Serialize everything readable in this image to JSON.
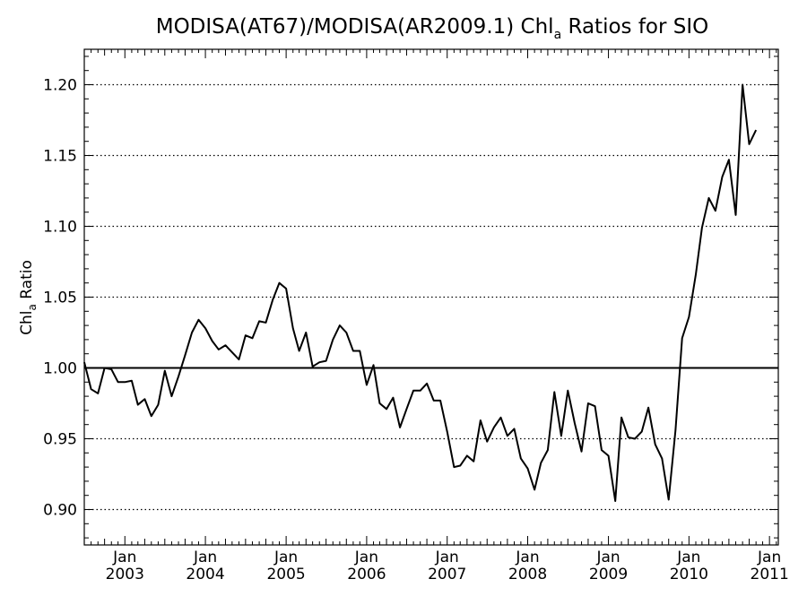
{
  "chart_data": {
    "type": "line",
    "title_main": "MODISA(AT67)/MODISA(AR2009.1)  Chl",
    "title_sub": "a",
    "title_tail": " Ratios for SIO",
    "ylabel_main": "Chl",
    "ylabel_sub": "a",
    "ylabel_tail": " Ratio",
    "xlim": [
      "2002-07-01",
      "2011-02-10"
    ],
    "ylim": [
      0.875,
      1.225
    ],
    "yticks": [
      {
        "value": 0.9,
        "label": "0.90"
      },
      {
        "value": 0.95,
        "label": "0.95"
      },
      {
        "value": 1.0,
        "label": "1.00"
      },
      {
        "value": 1.05,
        "label": "1.05"
      },
      {
        "value": 1.1,
        "label": "1.10"
      },
      {
        "value": 1.15,
        "label": "1.15"
      },
      {
        "value": 1.2,
        "label": "1.20"
      }
    ],
    "xticks": [
      {
        "date": "2003-01-01",
        "month": "Jan",
        "year": "2003"
      },
      {
        "date": "2004-01-01",
        "month": "Jan",
        "year": "2004"
      },
      {
        "date": "2005-01-01",
        "month": "Jan",
        "year": "2005"
      },
      {
        "date": "2006-01-01",
        "month": "Jan",
        "year": "2006"
      },
      {
        "date": "2007-01-01",
        "month": "Jan",
        "year": "2007"
      },
      {
        "date": "2008-01-01",
        "month": "Jan",
        "year": "2008"
      },
      {
        "date": "2009-01-01",
        "month": "Jan",
        "year": "2009"
      },
      {
        "date": "2010-01-01",
        "month": "Jan",
        "year": "2010"
      },
      {
        "date": "2011-01-01",
        "month": "Jan",
        "year": "2011"
      }
    ],
    "grid": "horizontal dotted",
    "reference_line": 1.0,
    "series": [
      {
        "points": [
          [
            "2002-07-01",
            1.004
          ],
          [
            "2002-08-01",
            0.985
          ],
          [
            "2002-09-01",
            0.982
          ],
          [
            "2002-10-01",
            1.0
          ],
          [
            "2002-11-01",
            0.999
          ],
          [
            "2002-12-01",
            0.99
          ],
          [
            "2003-01-01",
            0.99
          ],
          [
            "2003-02-01",
            0.991
          ],
          [
            "2003-03-01",
            0.974
          ],
          [
            "2003-04-01",
            0.978
          ],
          [
            "2003-05-01",
            0.966
          ],
          [
            "2003-06-01",
            0.974
          ],
          [
            "2003-07-01",
            0.998
          ],
          [
            "2003-08-01",
            0.98
          ],
          [
            "2003-09-01",
            0.994
          ],
          [
            "2003-10-01",
            1.009
          ],
          [
            "2003-11-01",
            1.025
          ],
          [
            "2003-12-01",
            1.034
          ],
          [
            "2004-01-01",
            1.028
          ],
          [
            "2004-02-01",
            1.019
          ],
          [
            "2004-03-01",
            1.013
          ],
          [
            "2004-04-01",
            1.016
          ],
          [
            "2004-05-01",
            1.011
          ],
          [
            "2004-06-01",
            1.006
          ],
          [
            "2004-07-01",
            1.023
          ],
          [
            "2004-08-01",
            1.021
          ],
          [
            "2004-09-01",
            1.033
          ],
          [
            "2004-10-01",
            1.032
          ],
          [
            "2004-11-01",
            1.048
          ],
          [
            "2004-12-01",
            1.06
          ],
          [
            "2005-01-01",
            1.056
          ],
          [
            "2005-02-01",
            1.028
          ],
          [
            "2005-03-01",
            1.012
          ],
          [
            "2005-04-01",
            1.025
          ],
          [
            "2005-05-01",
            1.001
          ],
          [
            "2005-06-01",
            1.004
          ],
          [
            "2005-07-01",
            1.005
          ],
          [
            "2005-08-01",
            1.02
          ],
          [
            "2005-09-01",
            1.03
          ],
          [
            "2005-10-01",
            1.025
          ],
          [
            "2005-11-01",
            1.012
          ],
          [
            "2005-12-01",
            1.012
          ],
          [
            "2006-01-01",
            0.988
          ],
          [
            "2006-02-01",
            1.002
          ],
          [
            "2006-03-01",
            0.975
          ],
          [
            "2006-04-01",
            0.971
          ],
          [
            "2006-05-01",
            0.979
          ],
          [
            "2006-06-01",
            0.958
          ],
          [
            "2006-07-01",
            0.971
          ],
          [
            "2006-08-01",
            0.984
          ],
          [
            "2006-09-01",
            0.984
          ],
          [
            "2006-10-01",
            0.989
          ],
          [
            "2006-11-01",
            0.977
          ],
          [
            "2006-12-01",
            0.977
          ],
          [
            "2007-01-01",
            0.955
          ],
          [
            "2007-02-01",
            0.93
          ],
          [
            "2007-03-01",
            0.931
          ],
          [
            "2007-04-01",
            0.938
          ],
          [
            "2007-05-01",
            0.934
          ],
          [
            "2007-06-01",
            0.963
          ],
          [
            "2007-07-01",
            0.948
          ],
          [
            "2007-08-01",
            0.958
          ],
          [
            "2007-09-01",
            0.965
          ],
          [
            "2007-10-01",
            0.952
          ],
          [
            "2007-11-01",
            0.957
          ],
          [
            "2007-12-01",
            0.936
          ],
          [
            "2008-01-01",
            0.929
          ],
          [
            "2008-02-01",
            0.914
          ],
          [
            "2008-03-01",
            0.933
          ],
          [
            "2008-04-01",
            0.942
          ],
          [
            "2008-05-01",
            0.983
          ],
          [
            "2008-06-01",
            0.952
          ],
          [
            "2008-07-01",
            0.984
          ],
          [
            "2008-08-01",
            0.961
          ],
          [
            "2008-09-01",
            0.941
          ],
          [
            "2008-10-01",
            0.975
          ],
          [
            "2008-11-01",
            0.973
          ],
          [
            "2008-12-01",
            0.942
          ],
          [
            "2009-01-01",
            0.938
          ],
          [
            "2009-02-01",
            0.906
          ],
          [
            "2009-03-01",
            0.965
          ],
          [
            "2009-04-01",
            0.951
          ],
          [
            "2009-05-01",
            0.95
          ],
          [
            "2009-06-01",
            0.955
          ],
          [
            "2009-07-01",
            0.972
          ],
          [
            "2009-08-01",
            0.946
          ],
          [
            "2009-09-01",
            0.936
          ],
          [
            "2009-10-01",
            0.907
          ],
          [
            "2009-11-01",
            0.956
          ],
          [
            "2009-12-01",
            1.021
          ],
          [
            "2010-01-01",
            1.036
          ],
          [
            "2010-02-01",
            1.066
          ],
          [
            "2010-03-01",
            1.099
          ],
          [
            "2010-04-01",
            1.12
          ],
          [
            "2010-05-01",
            1.111
          ],
          [
            "2010-06-01",
            1.135
          ],
          [
            "2010-07-01",
            1.147
          ],
          [
            "2010-08-01",
            1.108
          ],
          [
            "2010-09-01",
            1.2
          ],
          [
            "2010-10-01",
            1.158
          ],
          [
            "2010-11-01",
            1.168
          ]
        ]
      }
    ]
  }
}
